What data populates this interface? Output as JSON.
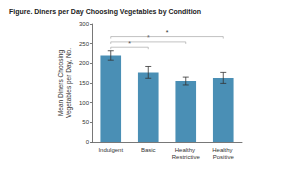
{
  "chart_data": {
    "type": "bar",
    "title": "Figure. Diners per Day Choosing Vegetables by Condition",
    "ylabel": "Mean Diners Choosing Vegetables per Day, No.",
    "categories": [
      "Indulgent",
      "Basic",
      "Healthy Restrictive",
      "Healthy Positive"
    ],
    "values": [
      220,
      177,
      155,
      163
    ],
    "errors": [
      12,
      15,
      10,
      14
    ],
    "color": "#4a8fb5",
    "ylim": [
      0,
      300
    ],
    "yticks": [
      0,
      50,
      100,
      150,
      200,
      250,
      300
    ],
    "grid": false,
    "annotations": [
      {
        "text": "*",
        "from": "Indulgent",
        "to": "Basic"
      },
      {
        "text": "*",
        "from": "Indulgent",
        "to": "Healthy Restrictive"
      },
      {
        "text": "*",
        "from": "Indulgent",
        "to": "Healthy Positive"
      }
    ]
  }
}
